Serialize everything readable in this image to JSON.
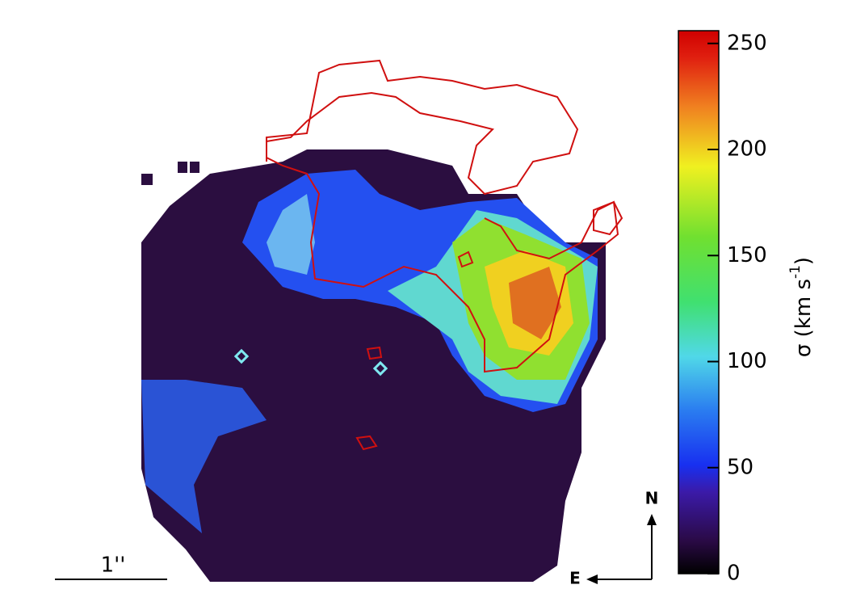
{
  "chart_data": {
    "type": "heatmap",
    "colorbar": {
      "label": "σ (km s",
      "label_superscript": "-1",
      "label_end": ")",
      "lim": [
        0,
        256
      ],
      "ticks": [
        0,
        50,
        100,
        150,
        200,
        250
      ]
    },
    "scale_bar_label": "1''",
    "compass": {
      "north": "N",
      "east": "E"
    }
  }
}
